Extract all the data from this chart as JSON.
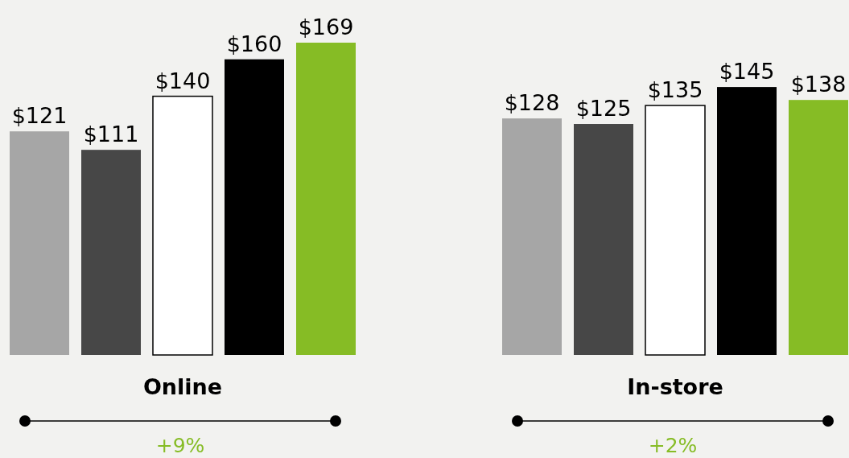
{
  "chart_data": {
    "type": "bar",
    "categories": [
      "Online",
      "In-store"
    ],
    "series": [
      {
        "color": "#a6a6a6",
        "values": [
          121,
          128
        ],
        "value_labels": [
          "$121",
          "$128"
        ]
      },
      {
        "color": "#474747",
        "values": [
          111,
          125
        ],
        "value_labels": [
          "$111",
          "$125"
        ]
      },
      {
        "color": "#ffffff",
        "values": [
          140,
          135
        ],
        "value_labels": [
          "$140",
          "$135"
        ]
      },
      {
        "color": "#000000",
        "values": [
          160,
          145
        ],
        "value_labels": [
          "$160",
          "$145"
        ]
      },
      {
        "color": "#86bc25",
        "values": [
          169,
          138
        ],
        "value_labels": [
          "$169",
          "$138"
        ]
      }
    ],
    "annotations": [
      "+9%",
      "+2%"
    ]
  }
}
